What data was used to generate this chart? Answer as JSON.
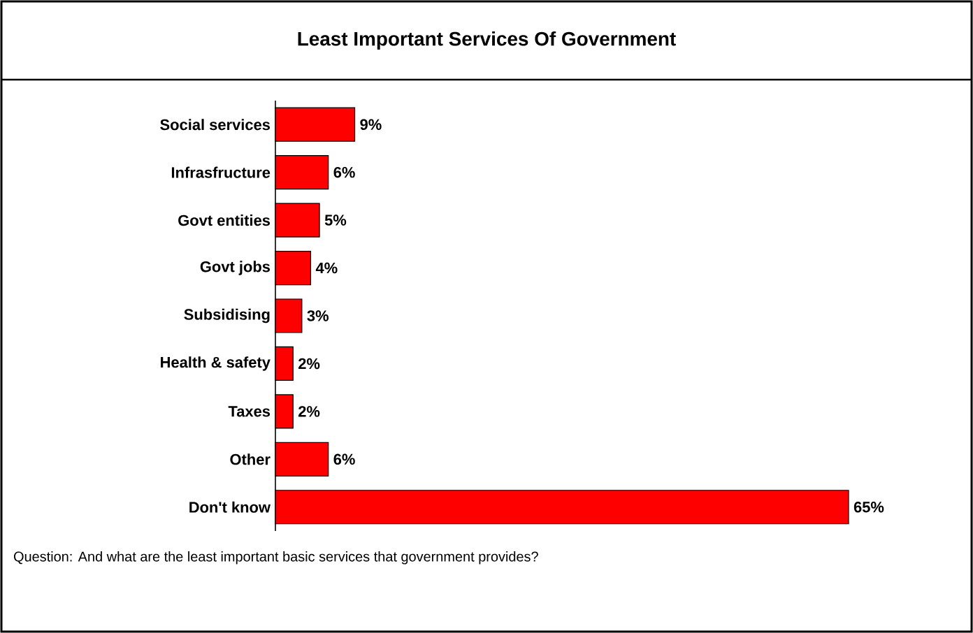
{
  "chart_data": {
    "type": "bar",
    "orientation": "horizontal",
    "title": "Least Important Services Of Government",
    "categories": [
      "Social services",
      "Infrasfructure",
      "Govt entities",
      "Govt jobs",
      "Subsidising",
      "Health & safety",
      "Taxes",
      "Other",
      "Don't know"
    ],
    "values": [
      9,
      6,
      5,
      4,
      3,
      2,
      2,
      6,
      65
    ],
    "value_labels": [
      "9%",
      "6%",
      "5%",
      "4%",
      "3%",
      "2%",
      "2%",
      "6%",
      "65%"
    ],
    "color": "#ff0000",
    "annotations": [
      "Question: And what are the least important basic services that government provides?"
    ]
  }
}
